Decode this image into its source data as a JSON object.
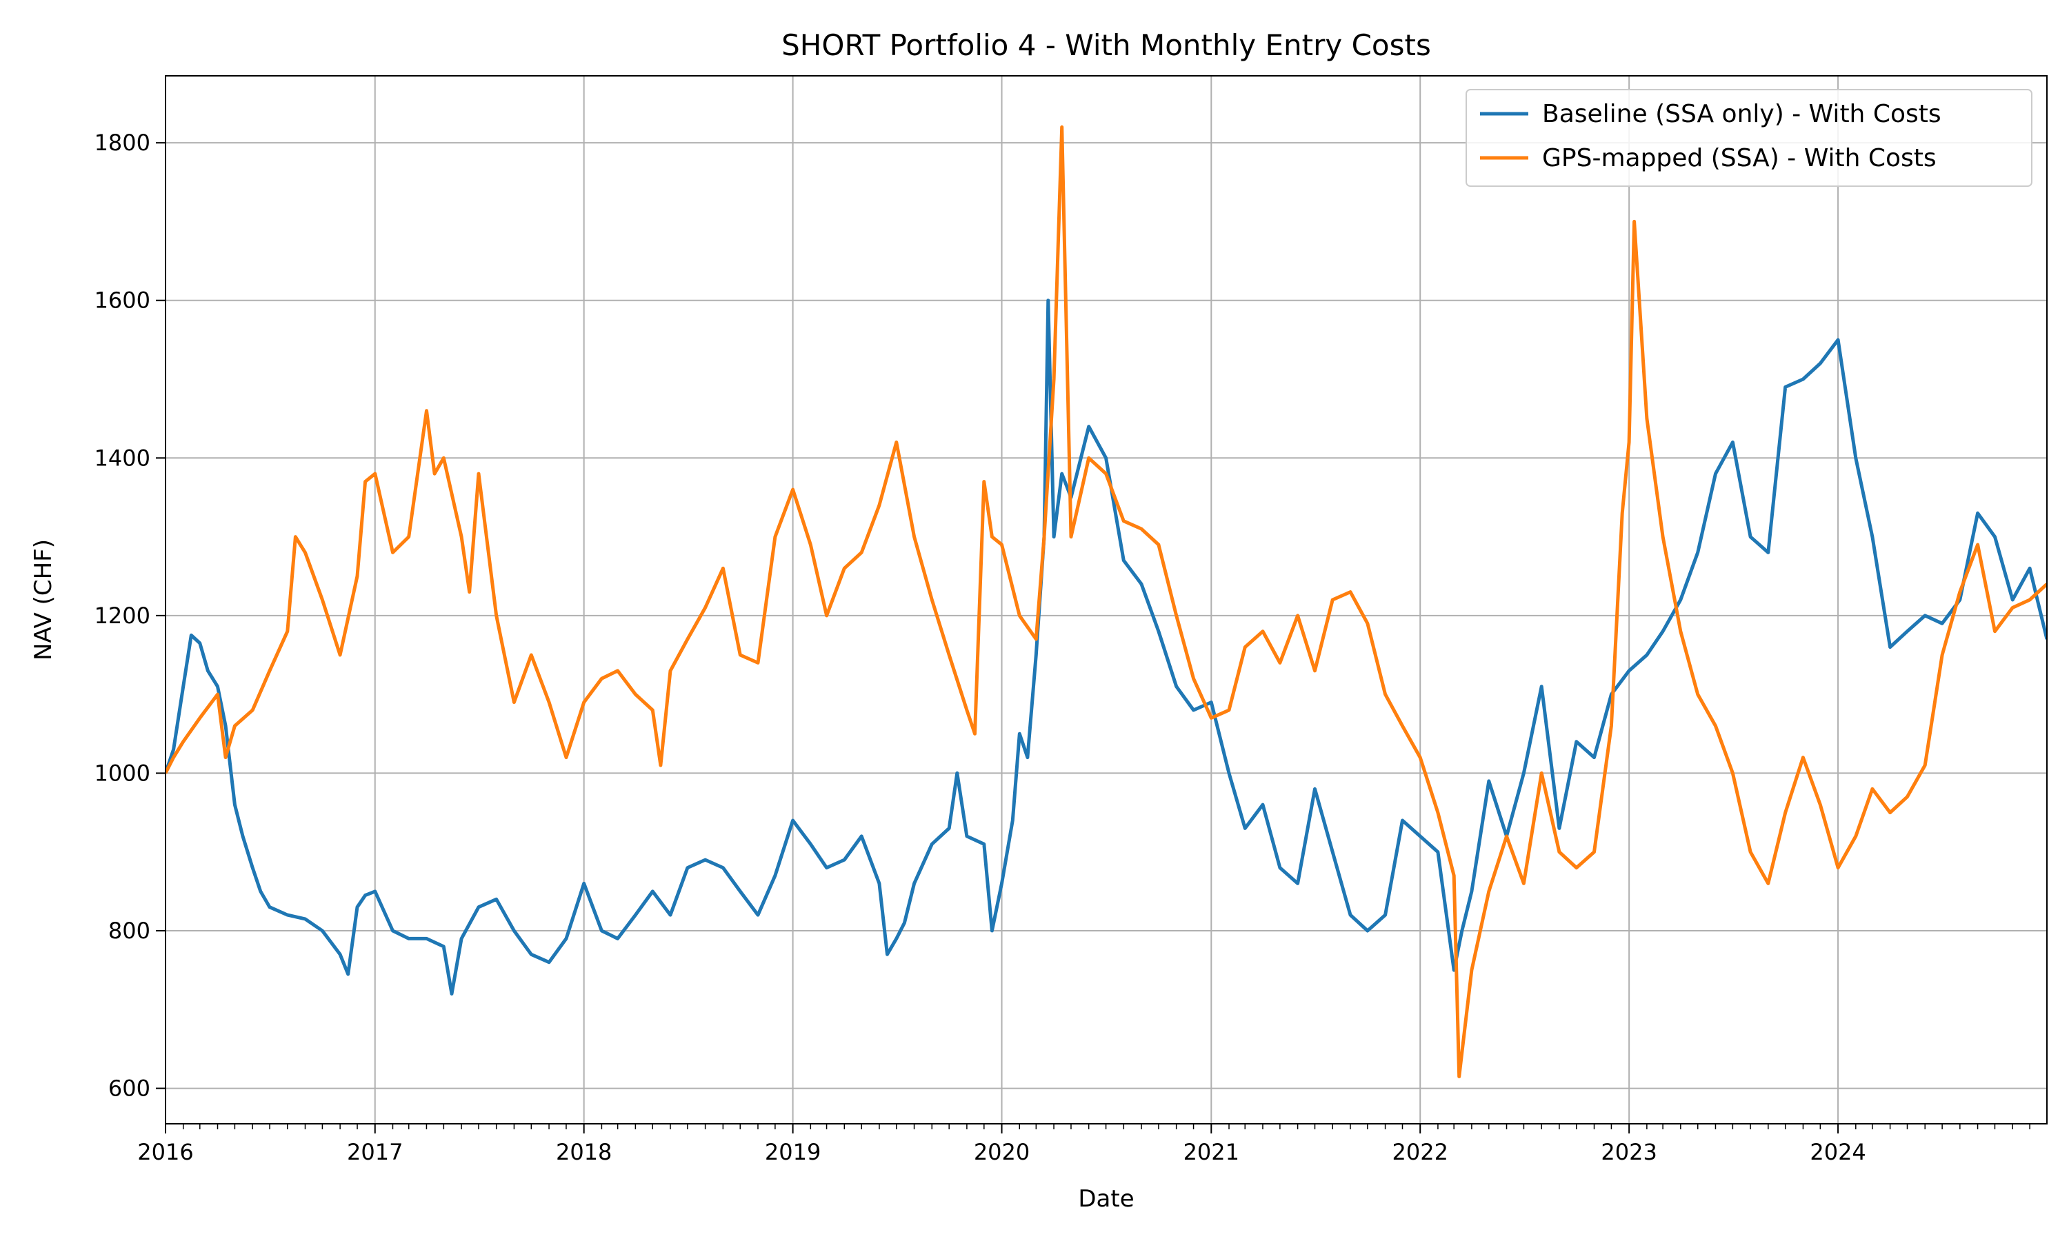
{
  "chart_data": {
    "type": "line",
    "title": "SHORT Portfolio 4 - With Monthly Entry Costs",
    "xlabel": "Date",
    "ylabel": "NAV (CHF)",
    "xlim": [
      "2016-01-01",
      "2024-12-31"
    ],
    "ylim": [
      555,
      1885
    ],
    "x_ticks": [
      "2016",
      "2017",
      "2018",
      "2019",
      "2020",
      "2021",
      "2022",
      "2023",
      "2024"
    ],
    "y_ticks": [
      600,
      800,
      1000,
      1200,
      1400,
      1600,
      1800
    ],
    "grid": true,
    "legend_position": "top-right",
    "series": [
      {
        "name": "Baseline (SSA only) - With Costs",
        "color": "#1f77b4",
        "points": [
          [
            "2016-01-01",
            1000
          ],
          [
            "2016-01-15",
            1030
          ],
          [
            "2016-02-01",
            1110
          ],
          [
            "2016-02-15",
            1175
          ],
          [
            "2016-03-01",
            1165
          ],
          [
            "2016-03-15",
            1130
          ],
          [
            "2016-04-01",
            1110
          ],
          [
            "2016-04-15",
            1060
          ],
          [
            "2016-05-01",
            960
          ],
          [
            "2016-05-15",
            920
          ],
          [
            "2016-06-01",
            880
          ],
          [
            "2016-06-15",
            850
          ],
          [
            "2016-07-01",
            830
          ],
          [
            "2016-08-01",
            820
          ],
          [
            "2016-09-01",
            815
          ],
          [
            "2016-10-01",
            800
          ],
          [
            "2016-11-01",
            770
          ],
          [
            "2016-11-15",
            745
          ],
          [
            "2016-12-01",
            830
          ],
          [
            "2016-12-15",
            845
          ],
          [
            "2017-01-01",
            850
          ],
          [
            "2017-02-01",
            800
          ],
          [
            "2017-03-01",
            790
          ],
          [
            "2017-04-01",
            790
          ],
          [
            "2017-05-01",
            780
          ],
          [
            "2017-05-15",
            720
          ],
          [
            "2017-06-01",
            790
          ],
          [
            "2017-07-01",
            830
          ],
          [
            "2017-08-01",
            840
          ],
          [
            "2017-09-01",
            800
          ],
          [
            "2017-10-01",
            770
          ],
          [
            "2017-11-01",
            760
          ],
          [
            "2017-12-01",
            790
          ],
          [
            "2018-01-01",
            860
          ],
          [
            "2018-02-01",
            800
          ],
          [
            "2018-03-01",
            790
          ],
          [
            "2018-04-01",
            820
          ],
          [
            "2018-05-01",
            850
          ],
          [
            "2018-06-01",
            820
          ],
          [
            "2018-07-01",
            880
          ],
          [
            "2018-08-01",
            890
          ],
          [
            "2018-09-01",
            880
          ],
          [
            "2018-10-01",
            850
          ],
          [
            "2018-11-01",
            820
          ],
          [
            "2018-12-01",
            870
          ],
          [
            "2019-01-01",
            940
          ],
          [
            "2019-02-01",
            910
          ],
          [
            "2019-03-01",
            880
          ],
          [
            "2019-04-01",
            890
          ],
          [
            "2019-05-01",
            920
          ],
          [
            "2019-06-01",
            860
          ],
          [
            "2019-06-15",
            770
          ],
          [
            "2019-07-01",
            790
          ],
          [
            "2019-07-15",
            810
          ],
          [
            "2019-08-01",
            860
          ],
          [
            "2019-09-01",
            910
          ],
          [
            "2019-10-01",
            930
          ],
          [
            "2019-10-15",
            1000
          ],
          [
            "2019-11-01",
            920
          ],
          [
            "2019-12-01",
            910
          ],
          [
            "2019-12-15",
            800
          ],
          [
            "2020-01-01",
            860
          ],
          [
            "2020-01-20",
            940
          ],
          [
            "2020-02-01",
            1050
          ],
          [
            "2020-02-15",
            1020
          ],
          [
            "2020-03-01",
            1150
          ],
          [
            "2020-03-15",
            1300
          ],
          [
            "2020-03-22",
            1600
          ],
          [
            "2020-04-01",
            1300
          ],
          [
            "2020-04-15",
            1380
          ],
          [
            "2020-05-01",
            1350
          ],
          [
            "2020-06-01",
            1440
          ],
          [
            "2020-07-01",
            1400
          ],
          [
            "2020-08-01",
            1270
          ],
          [
            "2020-09-01",
            1240
          ],
          [
            "2020-10-01",
            1180
          ],
          [
            "2020-11-01",
            1110
          ],
          [
            "2020-12-01",
            1080
          ],
          [
            "2021-01-01",
            1090
          ],
          [
            "2021-02-01",
            1000
          ],
          [
            "2021-03-01",
            930
          ],
          [
            "2021-04-01",
            960
          ],
          [
            "2021-05-01",
            880
          ],
          [
            "2021-06-01",
            860
          ],
          [
            "2021-07-01",
            980
          ],
          [
            "2021-08-01",
            900
          ],
          [
            "2021-09-01",
            820
          ],
          [
            "2021-10-01",
            800
          ],
          [
            "2021-11-01",
            820
          ],
          [
            "2021-12-01",
            940
          ],
          [
            "2022-01-01",
            920
          ],
          [
            "2022-02-01",
            900
          ],
          [
            "2022-03-01",
            750
          ],
          [
            "2022-03-15",
            800
          ],
          [
            "2022-04-01",
            850
          ],
          [
            "2022-05-01",
            990
          ],
          [
            "2022-06-01",
            920
          ],
          [
            "2022-07-01",
            1000
          ],
          [
            "2022-08-01",
            1110
          ],
          [
            "2022-09-01",
            930
          ],
          [
            "2022-10-01",
            1040
          ],
          [
            "2022-11-01",
            1020
          ],
          [
            "2022-12-01",
            1100
          ],
          [
            "2023-01-01",
            1130
          ],
          [
            "2023-02-01",
            1150
          ],
          [
            "2023-03-01",
            1180
          ],
          [
            "2023-04-01",
            1220
          ],
          [
            "2023-05-01",
            1280
          ],
          [
            "2023-06-01",
            1380
          ],
          [
            "2023-07-01",
            1420
          ],
          [
            "2023-08-01",
            1300
          ],
          [
            "2023-09-01",
            1280
          ],
          [
            "2023-10-01",
            1490
          ],
          [
            "2023-11-01",
            1500
          ],
          [
            "2023-12-01",
            1520
          ],
          [
            "2024-01-01",
            1550
          ],
          [
            "2024-02-01",
            1400
          ],
          [
            "2024-03-01",
            1300
          ],
          [
            "2024-04-01",
            1160
          ],
          [
            "2024-05-01",
            1180
          ],
          [
            "2024-06-01",
            1200
          ],
          [
            "2024-07-01",
            1190
          ],
          [
            "2024-08-01",
            1220
          ],
          [
            "2024-09-01",
            1330
          ],
          [
            "2024-10-01",
            1300
          ],
          [
            "2024-11-01",
            1220
          ],
          [
            "2024-12-01",
            1260
          ],
          [
            "2024-12-31",
            1170
          ]
        ]
      },
      {
        "name": "GPS-mapped (SSA) - With Costs",
        "color": "#ff7f0e",
        "points": [
          [
            "2016-01-01",
            1000
          ],
          [
            "2016-01-15",
            1020
          ],
          [
            "2016-02-01",
            1040
          ],
          [
            "2016-03-01",
            1070
          ],
          [
            "2016-04-01",
            1100
          ],
          [
            "2016-04-15",
            1020
          ],
          [
            "2016-05-01",
            1060
          ],
          [
            "2016-06-01",
            1080
          ],
          [
            "2016-07-01",
            1130
          ],
          [
            "2016-08-01",
            1180
          ],
          [
            "2016-08-15",
            1300
          ],
          [
            "2016-09-01",
            1280
          ],
          [
            "2016-10-01",
            1220
          ],
          [
            "2016-11-01",
            1150
          ],
          [
            "2016-12-01",
            1250
          ],
          [
            "2016-12-15",
            1370
          ],
          [
            "2017-01-01",
            1380
          ],
          [
            "2017-02-01",
            1280
          ],
          [
            "2017-03-01",
            1300
          ],
          [
            "2017-04-01",
            1460
          ],
          [
            "2017-04-15",
            1380
          ],
          [
            "2017-05-01",
            1400
          ],
          [
            "2017-06-01",
            1300
          ],
          [
            "2017-06-15",
            1230
          ],
          [
            "2017-07-01",
            1380
          ],
          [
            "2017-08-01",
            1200
          ],
          [
            "2017-09-01",
            1090
          ],
          [
            "2017-10-01",
            1150
          ],
          [
            "2017-11-01",
            1090
          ],
          [
            "2017-12-01",
            1020
          ],
          [
            "2018-01-01",
            1090
          ],
          [
            "2018-02-01",
            1120
          ],
          [
            "2018-03-01",
            1130
          ],
          [
            "2018-04-01",
            1100
          ],
          [
            "2018-05-01",
            1080
          ],
          [
            "2018-05-15",
            1010
          ],
          [
            "2018-06-01",
            1130
          ],
          [
            "2018-07-01",
            1170
          ],
          [
            "2018-08-01",
            1210
          ],
          [
            "2018-09-01",
            1260
          ],
          [
            "2018-10-01",
            1150
          ],
          [
            "2018-11-01",
            1140
          ],
          [
            "2018-12-01",
            1300
          ],
          [
            "2019-01-01",
            1360
          ],
          [
            "2019-02-01",
            1290
          ],
          [
            "2019-03-01",
            1200
          ],
          [
            "2019-04-01",
            1260
          ],
          [
            "2019-05-01",
            1280
          ],
          [
            "2019-06-01",
            1340
          ],
          [
            "2019-07-01",
            1420
          ],
          [
            "2019-08-01",
            1300
          ],
          [
            "2019-09-01",
            1220
          ],
          [
            "2019-10-01",
            1150
          ],
          [
            "2019-11-01",
            1080
          ],
          [
            "2019-11-15",
            1050
          ],
          [
            "2019-12-01",
            1370
          ],
          [
            "2019-12-15",
            1300
          ],
          [
            "2020-01-01",
            1290
          ],
          [
            "2020-02-01",
            1200
          ],
          [
            "2020-03-01",
            1170
          ],
          [
            "2020-03-15",
            1300
          ],
          [
            "2020-04-01",
            1500
          ],
          [
            "2020-04-15",
            1820
          ],
          [
            "2020-05-01",
            1300
          ],
          [
            "2020-06-01",
            1400
          ],
          [
            "2020-07-01",
            1380
          ],
          [
            "2020-08-01",
            1320
          ],
          [
            "2020-09-01",
            1310
          ],
          [
            "2020-10-01",
            1290
          ],
          [
            "2020-11-01",
            1200
          ],
          [
            "2020-12-01",
            1120
          ],
          [
            "2021-01-01",
            1070
          ],
          [
            "2021-02-01",
            1080
          ],
          [
            "2021-03-01",
            1160
          ],
          [
            "2021-04-01",
            1180
          ],
          [
            "2021-05-01",
            1140
          ],
          [
            "2021-06-01",
            1200
          ],
          [
            "2021-07-01",
            1130
          ],
          [
            "2021-08-01",
            1220
          ],
          [
            "2021-09-01",
            1230
          ],
          [
            "2021-10-01",
            1190
          ],
          [
            "2021-11-01",
            1100
          ],
          [
            "2021-12-01",
            1060
          ],
          [
            "2022-01-01",
            1020
          ],
          [
            "2022-02-01",
            950
          ],
          [
            "2022-03-01",
            870
          ],
          [
            "2022-03-10",
            615
          ],
          [
            "2022-04-01",
            750
          ],
          [
            "2022-05-01",
            850
          ],
          [
            "2022-06-01",
            920
          ],
          [
            "2022-07-01",
            860
          ],
          [
            "2022-08-01",
            1000
          ],
          [
            "2022-09-01",
            900
          ],
          [
            "2022-10-01",
            880
          ],
          [
            "2022-11-01",
            900
          ],
          [
            "2022-12-01",
            1060
          ],
          [
            "2022-12-20",
            1330
          ],
          [
            "2023-01-01",
            1420
          ],
          [
            "2023-01-10",
            1700
          ],
          [
            "2023-02-01",
            1450
          ],
          [
            "2023-03-01",
            1300
          ],
          [
            "2023-04-01",
            1180
          ],
          [
            "2023-05-01",
            1100
          ],
          [
            "2023-06-01",
            1060
          ],
          [
            "2023-07-01",
            1000
          ],
          [
            "2023-08-01",
            900
          ],
          [
            "2023-09-01",
            860
          ],
          [
            "2023-10-01",
            950
          ],
          [
            "2023-11-01",
            1020
          ],
          [
            "2023-12-01",
            960
          ],
          [
            "2024-01-01",
            880
          ],
          [
            "2024-02-01",
            920
          ],
          [
            "2024-03-01",
            980
          ],
          [
            "2024-04-01",
            950
          ],
          [
            "2024-05-01",
            970
          ],
          [
            "2024-06-01",
            1010
          ],
          [
            "2024-07-01",
            1150
          ],
          [
            "2024-08-01",
            1230
          ],
          [
            "2024-09-01",
            1290
          ],
          [
            "2024-10-01",
            1180
          ],
          [
            "2024-11-01",
            1210
          ],
          [
            "2024-12-01",
            1220
          ],
          [
            "2024-12-31",
            1240
          ]
        ]
      }
    ]
  }
}
